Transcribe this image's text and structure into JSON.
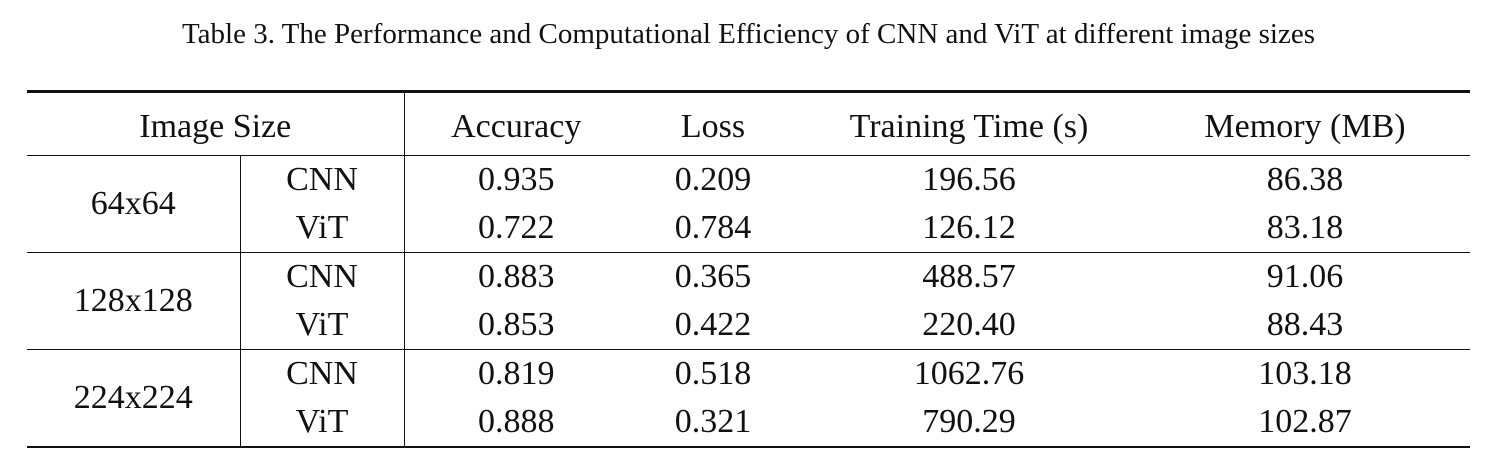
{
  "caption": "Table 3. The Performance and Computational Efficiency of CNN and ViT at different image sizes",
  "table": {
    "headers": {
      "image_size": "Image Size",
      "accuracy": "Accuracy",
      "loss": "Loss",
      "training_time": "Training Time (s)",
      "memory": "Memory (MB)"
    },
    "groups": [
      {
        "size": "64x64",
        "rows": [
          {
            "model": "CNN",
            "accuracy": "0.935",
            "loss": "0.209",
            "training_time": "196.56",
            "memory": "86.38"
          },
          {
            "model": "ViT",
            "accuracy": "0.722",
            "loss": "0.784",
            "training_time": "126.12",
            "memory": "83.18"
          }
        ]
      },
      {
        "size": "128x128",
        "rows": [
          {
            "model": "CNN",
            "accuracy": "0.883",
            "loss": "0.365",
            "training_time": "488.57",
            "memory": "91.06"
          },
          {
            "model": "ViT",
            "accuracy": "0.853",
            "loss": "0.422",
            "training_time": "220.40",
            "memory": "88.43"
          }
        ]
      },
      {
        "size": "224x224",
        "rows": [
          {
            "model": "CNN",
            "accuracy": "0.819",
            "loss": "0.518",
            "training_time": "1062.76",
            "memory": "103.18"
          },
          {
            "model": "ViT",
            "accuracy": "0.888",
            "loss": "0.321",
            "training_time": "790.29",
            "memory": "102.87"
          }
        ]
      }
    ]
  }
}
